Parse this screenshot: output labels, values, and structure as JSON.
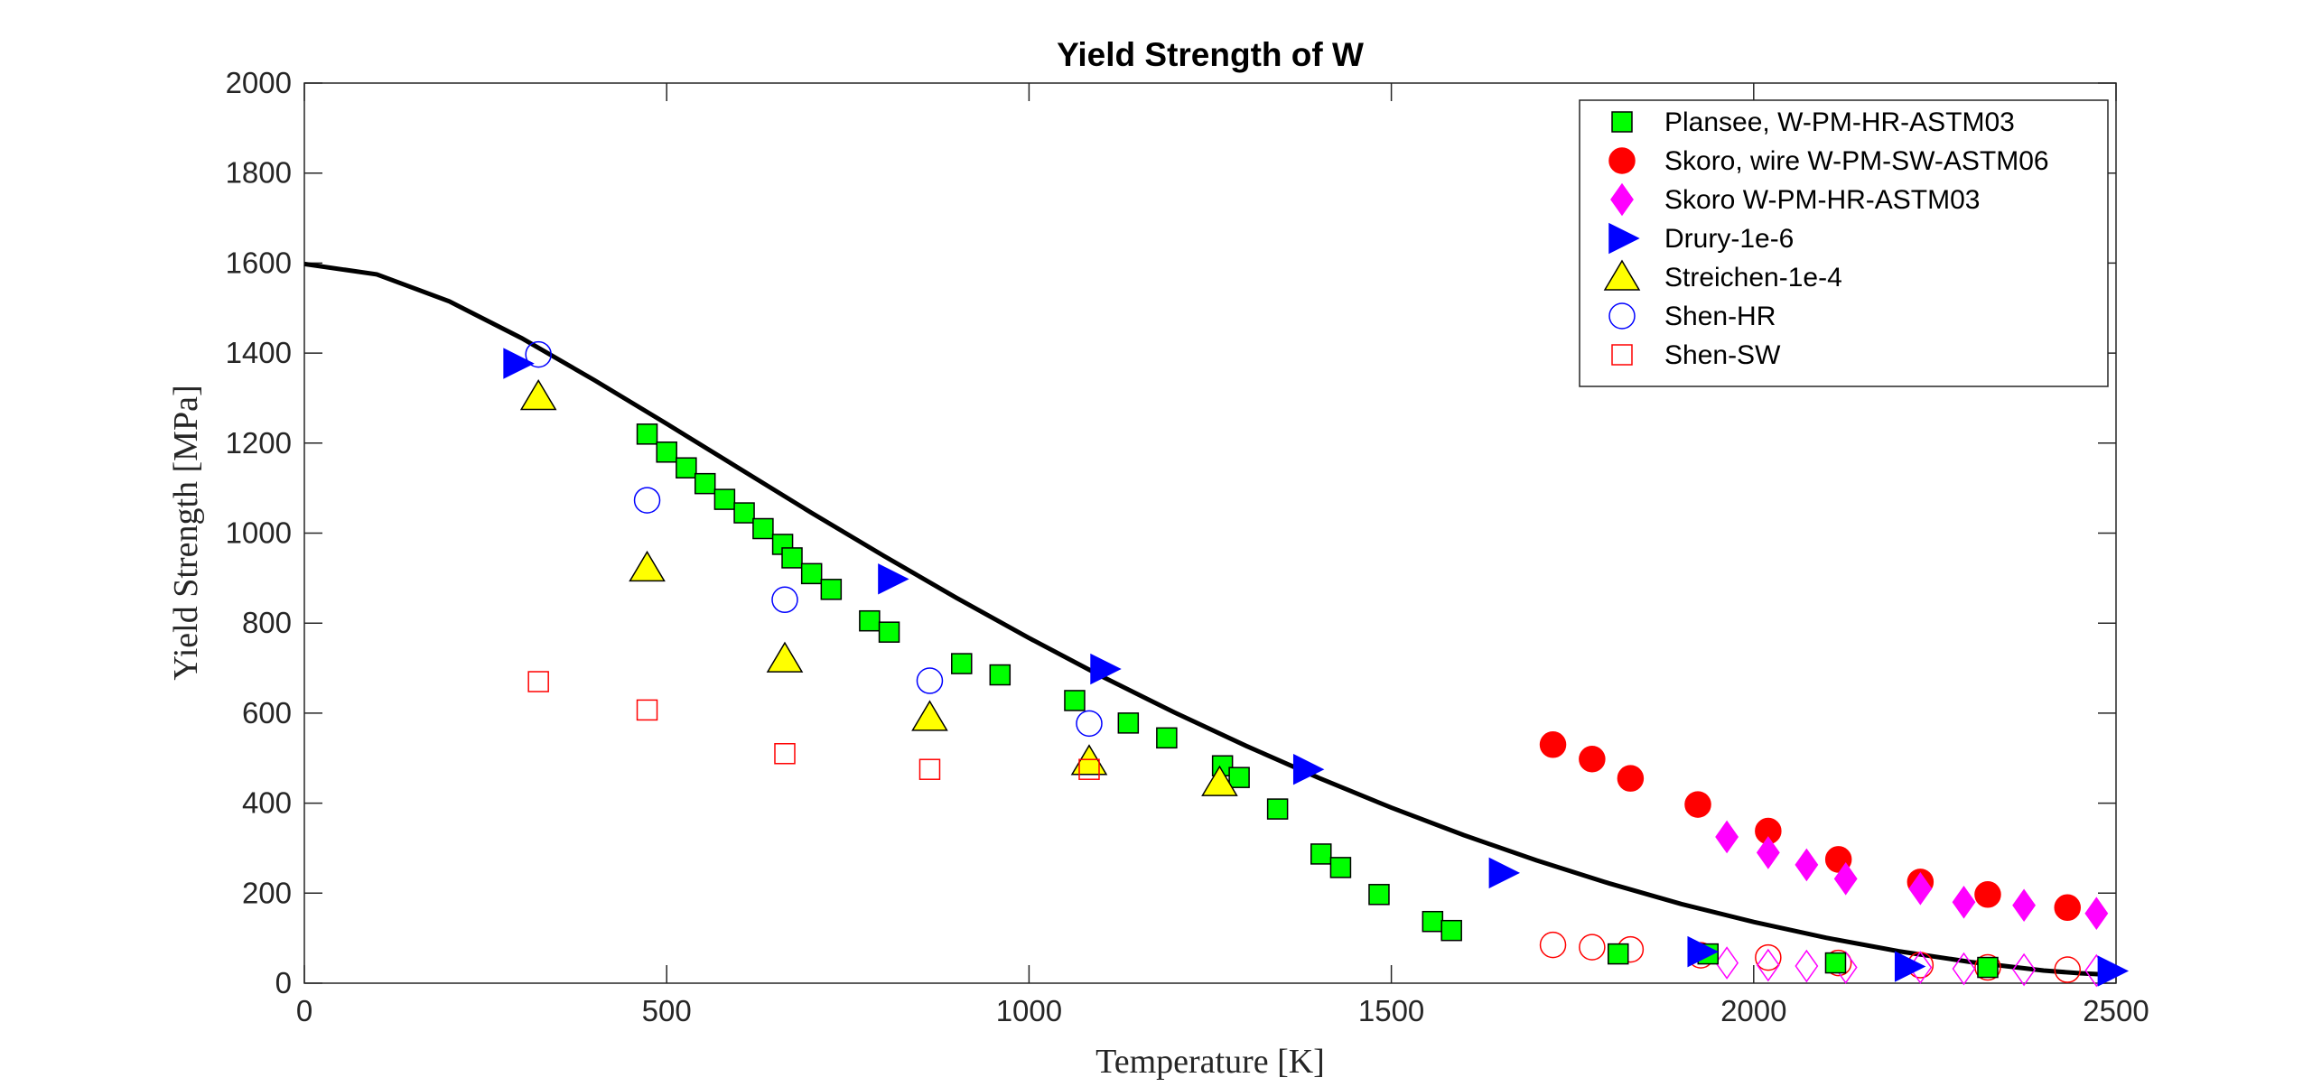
{
  "chart_data": {
    "type": "scatter",
    "title": "Yield Strength of W",
    "xlabel": "Temperature [K]",
    "ylabel": "Yield Strength [MPa]",
    "xlim": [
      0,
      2500
    ],
    "ylim": [
      0,
      2000
    ],
    "xticks": [
      "0",
      "500",
      "1000",
      "1500",
      "2000",
      "2500"
    ],
    "yticks": [
      "0",
      "200",
      "400",
      "600",
      "800",
      "1000",
      "1200",
      "1400",
      "1600",
      "1800",
      "2000"
    ],
    "grid": false,
    "legend_position": "top-right",
    "series": [
      {
        "name": "Plansee, W-PM-HR-ASTM03",
        "marker": "square",
        "filled": true,
        "color": "#00ff00",
        "edge_color": "#000000",
        "points": [
          [
            473,
            1220
          ],
          [
            500,
            1180
          ],
          [
            527,
            1145
          ],
          [
            553,
            1110
          ],
          [
            580,
            1075
          ],
          [
            607,
            1045
          ],
          [
            633,
            1010
          ],
          [
            660,
            975
          ],
          [
            673,
            945
          ],
          [
            700,
            910
          ],
          [
            727,
            875
          ],
          [
            780,
            805
          ],
          [
            807,
            780
          ],
          [
            907,
            710
          ],
          [
            960,
            685
          ],
          [
            1063,
            628
          ],
          [
            1137,
            578
          ],
          [
            1190,
            545
          ],
          [
            1267,
            483
          ],
          [
            1290,
            457
          ],
          [
            1343,
            387
          ],
          [
            1403,
            287
          ],
          [
            1430,
            257
          ],
          [
            1483,
            197
          ],
          [
            1557,
            137
          ],
          [
            1583,
            117
          ],
          [
            1813,
            65
          ],
          [
            1937,
            65
          ],
          [
            2113,
            45
          ],
          [
            2323,
            35
          ]
        ]
      },
      {
        "name": "Skoro, wire W-PM-SW-ASTM06",
        "marker": "circle",
        "filled": true,
        "color": "#ff0000",
        "edge_color": "#ff0000",
        "points": [
          [
            1723,
            530
          ],
          [
            1777,
            498
          ],
          [
            1830,
            455
          ],
          [
            1923,
            397
          ],
          [
            2020,
            338
          ],
          [
            2117,
            275
          ],
          [
            2230,
            225
          ],
          [
            2323,
            197
          ],
          [
            2433,
            168
          ]
        ]
      },
      {
        "name": "Skoro W-PM-HR-ASTM03",
        "marker": "diamond",
        "filled": true,
        "color": "#ff00ff",
        "edge_color": "#ff00ff",
        "points": [
          [
            1963,
            325
          ],
          [
            2020,
            290
          ],
          [
            2073,
            263
          ],
          [
            2127,
            232
          ],
          [
            2230,
            210
          ],
          [
            2290,
            180
          ],
          [
            2373,
            173
          ],
          [
            2473,
            155
          ]
        ]
      },
      {
        "name": "Drury-1e-6",
        "marker": "triangle-right",
        "filled": true,
        "color": "#0000ff",
        "edge_color": "#0000ff",
        "points": [
          [
            293,
            1377
          ],
          [
            810,
            898
          ],
          [
            1103,
            698
          ],
          [
            1383,
            475
          ],
          [
            1653,
            245
          ],
          [
            1927,
            70
          ],
          [
            2213,
            37
          ],
          [
            2493,
            27
          ]
        ]
      },
      {
        "name": "Streichen-1e-4",
        "marker": "triangle-up",
        "filled": true,
        "color": "#ffff00",
        "edge_color": "#000000",
        "points": [
          [
            323,
            1303
          ],
          [
            473,
            922
          ],
          [
            663,
            720
          ],
          [
            863,
            590
          ],
          [
            1083,
            492
          ],
          [
            1263,
            445
          ]
        ]
      },
      {
        "name": "Shen-HR",
        "marker": "circle",
        "filled": false,
        "color": "#0000ff",
        "edge_color": "#0000ff",
        "points": [
          [
            323,
            1397
          ],
          [
            473,
            1073
          ],
          [
            663,
            852
          ],
          [
            863,
            672
          ],
          [
            1083,
            577
          ]
        ]
      },
      {
        "name": "Shen-SW",
        "marker": "square",
        "filled": false,
        "color": "#ff0000",
        "edge_color": "#ff0000",
        "points": [
          [
            323,
            670
          ],
          [
            473,
            607
          ],
          [
            663,
            510
          ],
          [
            863,
            475
          ],
          [
            1083,
            475
          ]
        ]
      }
    ],
    "extra_series": [
      {
        "marker": "circle",
        "filled": false,
        "color": "#ff0000",
        "points": [
          [
            1723,
            85
          ],
          [
            1777,
            80
          ],
          [
            1830,
            75
          ],
          [
            1927,
            62
          ],
          [
            2020,
            57
          ],
          [
            2117,
            45
          ],
          [
            2230,
            40
          ],
          [
            2323,
            35
          ],
          [
            2433,
            30
          ]
        ]
      },
      {
        "marker": "diamond",
        "filled": false,
        "color": "#ff00ff",
        "points": [
          [
            1963,
            45
          ],
          [
            2020,
            40
          ],
          [
            2073,
            38
          ],
          [
            2127,
            35
          ],
          [
            2230,
            35
          ],
          [
            2290,
            32
          ],
          [
            2373,
            30
          ],
          [
            2473,
            28
          ]
        ]
      }
    ],
    "fit_curve": {
      "color": "#000000",
      "points": [
        [
          0,
          1598
        ],
        [
          100,
          1575
        ],
        [
          200,
          1515
        ],
        [
          300,
          1433
        ],
        [
          400,
          1340
        ],
        [
          500,
          1243
        ],
        [
          600,
          1144
        ],
        [
          700,
          1045
        ],
        [
          800,
          949
        ],
        [
          900,
          856
        ],
        [
          1000,
          767
        ],
        [
          1100,
          682
        ],
        [
          1200,
          602
        ],
        [
          1300,
          527
        ],
        [
          1400,
          456
        ],
        [
          1500,
          390
        ],
        [
          1600,
          329
        ],
        [
          1700,
          273
        ],
        [
          1800,
          222
        ],
        [
          1900,
          176
        ],
        [
          2000,
          136
        ],
        [
          2100,
          101
        ],
        [
          2200,
          71
        ],
        [
          2300,
          47
        ],
        [
          2400,
          28
        ],
        [
          2450,
          22
        ],
        [
          2500,
          18
        ]
      ]
    }
  }
}
